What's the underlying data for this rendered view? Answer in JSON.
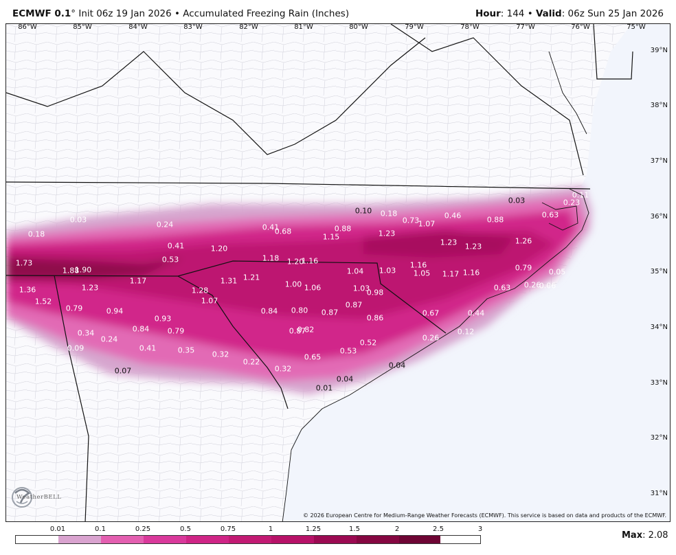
{
  "header": {
    "model": "ECMWF 0.1",
    "degree": "°",
    "init": "Init 06z 19 Jan 2026",
    "sep": "•",
    "product": "Accumulated Freezing Rain (Inches)",
    "hour_label": "Hour",
    "hour_value": ": 144",
    "valid_label": "Valid",
    "valid_value": ": 06z Sun 25 Jan 2026"
  },
  "longitudes": [
    "86°W",
    "85°W",
    "84°W",
    "83°W",
    "82°W",
    "81°W",
    "80°W",
    "79°W",
    "78°W",
    "77°W",
    "76°W",
    "75°W"
  ],
  "latitudes": [
    "39°N",
    "38°N",
    "37°N",
    "36°N",
    "35°N",
    "34°N",
    "33°N",
    "32°N",
    "31°N"
  ],
  "values": [
    "0.03",
    "0.18",
    "1.73",
    "1.36",
    "1.52",
    "1.88",
    "1.90",
    "1.23",
    "0.79",
    "0.94",
    "0.34",
    "0.24",
    "0.09",
    "0.07",
    "0.24",
    "0.41",
    "0.53",
    "1.17",
    "0.93",
    "0.84",
    "0.79",
    "0.41",
    "0.35",
    "0.32",
    "0.22",
    "0.32",
    "0.01",
    "1.28",
    "1.07",
    "1.31",
    "1.20",
    "1.18",
    "1.21",
    "1.20",
    "1.16",
    "0.41",
    "0.68",
    "1.00",
    "1.06",
    "0.84",
    "0.80",
    "0.87",
    "0.87",
    "0.82",
    "0.65",
    "0.53",
    "0.52",
    "0.04",
    "0.04",
    "0.10",
    "0.18",
    "0.88",
    "1.15",
    "1.23",
    "1.04",
    "1.03",
    "1.03",
    "0.98",
    "0.87",
    "0.86",
    "0.73",
    "1.07",
    "0.46",
    "0.88",
    "1.23",
    "1.23",
    "1.16",
    "1.05",
    "1.17",
    "1.16",
    "0.67",
    "0.44",
    "0.26",
    "0.12",
    "0.03",
    "0.63",
    "1.26",
    "0.79",
    "0.63",
    "0.26",
    "0.06",
    "0.05",
    "0.23",
    "0.11"
  ],
  "copyright": "© 2026 European Centre for Medium-Range Weather Forecasts (ECMWF). This service is based on data and products of the ECMWF.",
  "logo": "WeatherBELL",
  "colorbar": {
    "labels": [
      "0.01",
      "0.1",
      "0.25",
      "0.5",
      "0.75",
      "1",
      "1.25",
      "1.5",
      "2",
      "2.5",
      "3"
    ],
    "colors": [
      "#ffffff",
      "#d9a3cf",
      "#e35fb0",
      "#d9399b",
      "#cf2586",
      "#c21a73",
      "#b71268",
      "#9b0a52",
      "#850741",
      "#6e0534"
    ]
  },
  "max": {
    "label": "Max",
    "value": ": 2.08"
  }
}
